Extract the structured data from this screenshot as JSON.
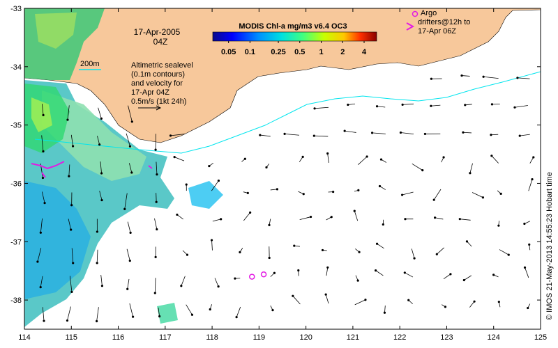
{
  "map": {
    "date_line1": "17-Apr-2005",
    "date_line2": "04Z",
    "contour_label": "200m",
    "sealevel_lines": [
      "Altimetric sealevel",
      "(0.1m contours)",
      "and velocity for",
      "17-Apr 04Z",
      "0.5m/s (1kt 24h)"
    ],
    "argo_lines": [
      "Argo",
      "drifters@12h to",
      "17-Apr 06Z"
    ],
    "credit": "© IMOS 21-May-2013 14:55:23 Hobart time",
    "colorbar": {
      "title": "MODIS Chl-a mg/m3 v6.4 OC3",
      "ticks": [
        "0.05",
        "0.1",
        "0.25",
        "0.5",
        "1",
        "2",
        "4"
      ]
    },
    "axes": {
      "lon_ticks": [
        "114",
        "115",
        "116",
        "117",
        "118",
        "119",
        "120",
        "121",
        "122",
        "123",
        "124",
        "125"
      ],
      "lat_ticks": [
        "-33",
        "-34",
        "-35",
        "-36",
        "-37",
        "-38"
      ],
      "xlim": [
        114,
        125
      ],
      "ylim": [
        -38.5,
        -33
      ]
    },
    "colors": {
      "land": "#f7c89b",
      "contour": "#00e5ee",
      "argo": "#e31ae3",
      "arrow": "#000000"
    },
    "argo_markers": [
      {
        "lon": 118.85,
        "lat": -37.6
      },
      {
        "lon": 119.1,
        "lat": -37.56
      },
      {
        "lon": 122.35,
        "lat": -33.05
      }
    ]
  }
}
